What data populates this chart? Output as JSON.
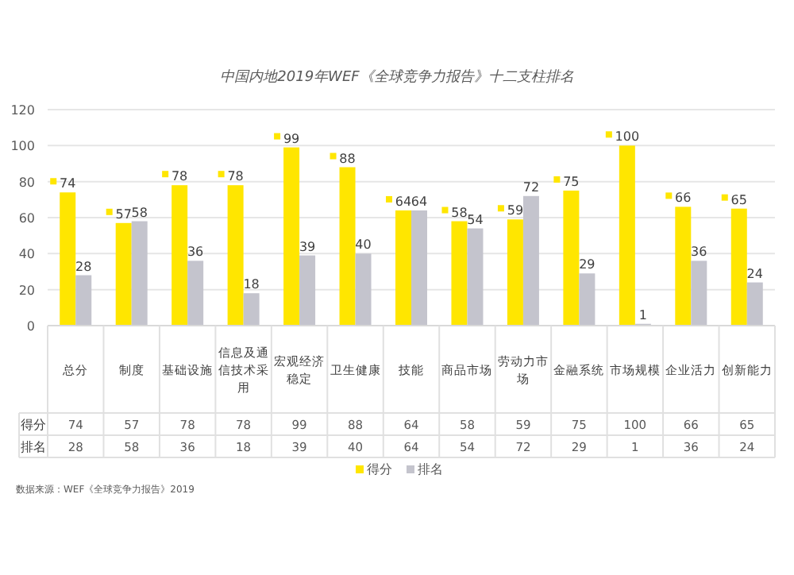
{
  "chart_data": {
    "type": "bar",
    "title": "中国内地2019年WEF《全球竞争力报告》十二支柱排名",
    "categories": [
      "总分",
      "制度",
      "基础设施",
      "信息及通信技术采用",
      "宏观经济稳定",
      "卫生健康",
      "技能",
      "商品市场",
      "劳动力市场",
      "金融系统",
      "市场规模",
      "企业活力",
      "创新能力"
    ],
    "series": [
      {
        "name": "得分",
        "color": "#ffe600",
        "values": [
          74,
          57,
          78,
          78,
          99,
          88,
          64,
          58,
          59,
          75,
          100,
          66,
          65
        ],
        "value_labels": [
          "74",
          "57",
          "78",
          "78",
          "99",
          "88",
          "64",
          "58",
          "59",
          "75",
          "100",
          "66",
          "65"
        ]
      },
      {
        "name": "排名",
        "color": "#c4c4cd",
        "values": [
          28,
          58,
          36,
          18,
          39,
          40,
          64,
          54,
          72,
          29,
          1,
          36,
          24
        ],
        "value_labels": [
          "28",
          "58",
          "36",
          "18",
          "39",
          "40",
          "64",
          "54",
          "72",
          "29",
          "1",
          "36",
          "24"
        ]
      }
    ],
    "ylim": [
      0,
      120
    ],
    "yticks": [
      0,
      20,
      40,
      60,
      80,
      100,
      120
    ],
    "grid": "y",
    "data_labels": true,
    "legend": "bottom",
    "annotations": [
      "数据来源：WEF《全球竞争力报告》2019"
    ]
  }
}
